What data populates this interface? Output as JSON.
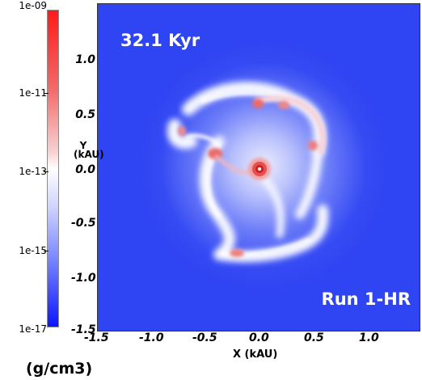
{
  "colorbar": {
    "ticks": [
      "1e-09",
      "1e-11",
      "1e-13",
      "1e-15",
      "1e-17"
    ],
    "unit_label": "(g/cm3)"
  },
  "plot": {
    "time_label": "32.1 Kyr",
    "run_label": "Run 1-HR",
    "xlabel": "X (kAU)",
    "ylabel_line1": "Y",
    "ylabel_line2": "(kAU)",
    "xticks": [
      "-1.5",
      "-1.0",
      "-0.5",
      "0.0",
      "0.5",
      "1.0"
    ],
    "yticks": [
      "1.0",
      "0.5",
      "0.0",
      "-0.5",
      "-1.0",
      "-1.5"
    ]
  }
}
